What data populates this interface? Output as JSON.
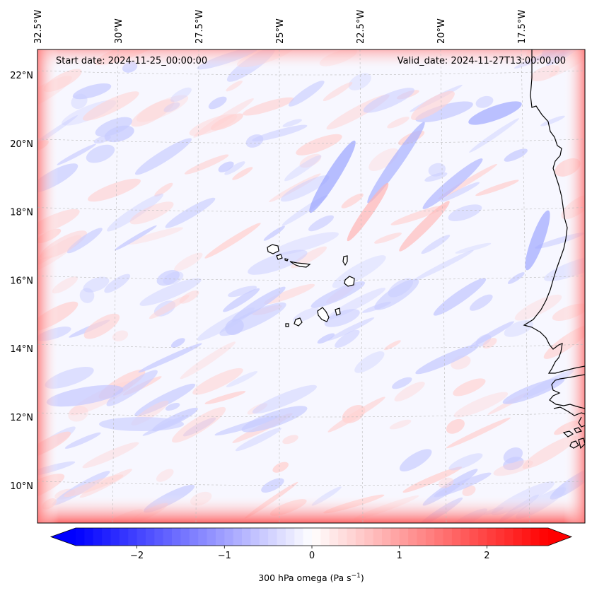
{
  "figure": {
    "start_date": "Start date: 2024-11-25_00:00:00",
    "valid_date": "Valid_date: 2024-11-27T13:00:00.00"
  },
  "map": {
    "projection": "lambert-conformal",
    "lon_ticks": [
      {
        "value": -32.5,
        "label": "32.5°W"
      },
      {
        "value": -30.0,
        "label": "30°W"
      },
      {
        "value": -27.5,
        "label": "27.5°W"
      },
      {
        "value": -25.0,
        "label": "25°W"
      },
      {
        "value": -22.5,
        "label": "22.5°W"
      },
      {
        "value": -20.0,
        "label": "20°W"
      },
      {
        "value": -17.5,
        "label": "17.5°W"
      }
    ],
    "lat_ticks": [
      {
        "value": 22,
        "label": "22°N"
      },
      {
        "value": 20,
        "label": "20°N"
      },
      {
        "value": 18,
        "label": "18°N"
      },
      {
        "value": 16,
        "label": "16°N"
      },
      {
        "value": 14,
        "label": "14°N"
      },
      {
        "value": 12,
        "label": "12°N"
      },
      {
        "value": 10,
        "label": "10°N"
      }
    ],
    "gridlines": true,
    "features": [
      "cape-verde-islands",
      "west-african-coastline"
    ]
  },
  "colorbar": {
    "label_main": "300 hPa omega (Pa s",
    "label_exp": "−1",
    "label_end": ")",
    "colormap": "bwr",
    "range": [
      -2.7,
      2.7
    ],
    "extend": "both",
    "ticks": [
      {
        "value": -2,
        "label": "−2"
      },
      {
        "value": -1,
        "label": "−1"
      },
      {
        "value": 0,
        "label": "0"
      },
      {
        "value": 1,
        "label": "1"
      },
      {
        "value": 2,
        "label": "2"
      }
    ],
    "color_negative": "#0000ff",
    "color_zero": "#ffffff",
    "color_positive": "#ff0000"
  }
}
